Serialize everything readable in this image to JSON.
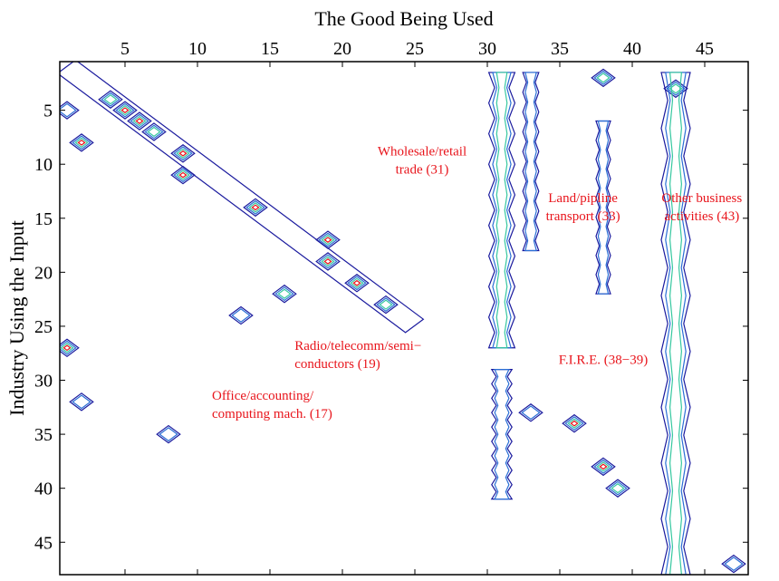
{
  "chart_data": {
    "type": "contour",
    "xlabel": "The Good Being Used",
    "ylabel": "Industry Using the Input",
    "xlim": [
      0.5,
      48
    ],
    "ylim": [
      0.5,
      48
    ],
    "y_reversed": true,
    "x_axis_position": "top",
    "xticks": [
      5,
      10,
      15,
      20,
      25,
      30,
      35,
      40,
      45
    ],
    "yticks": [
      5,
      10,
      15,
      20,
      25,
      30,
      35,
      40,
      45
    ],
    "level_colors": [
      "#1a1a9e",
      "#2b6fd6",
      "#37c8a0",
      "#e8141b"
    ],
    "annotations": [
      {
        "lines": [
          "Wholesale/retail",
          "trade (31)"
        ],
        "x": 25.5,
        "y": 9.2,
        "align": "middle"
      },
      {
        "lines": [
          "Land/pipline",
          "transport (33)"
        ],
        "x": 36.6,
        "y": 13.5,
        "align": "middle"
      },
      {
        "lines": [
          "Other business",
          "activities (43)"
        ],
        "x": 44.8,
        "y": 13.5,
        "align": "middle"
      },
      {
        "lines": [
          "Radio/telecomm/semi−",
          "conductors (19)"
        ],
        "x": 16.7,
        "y": 27.2,
        "align": "start"
      },
      {
        "lines": [
          "F.I.R.E. (38−39)"
        ],
        "x": 38.0,
        "y": 28.5,
        "align": "middle"
      },
      {
        "lines": [
          "Office/accounting/",
          "computing mach. (17)"
        ],
        "x": 11.0,
        "y": 31.8,
        "align": "start"
      }
    ],
    "diagonal_peaks": [
      {
        "x": 2,
        "y": 8,
        "level": 3
      },
      {
        "x": 4,
        "y": 4,
        "level": 2
      },
      {
        "x": 5,
        "y": 5,
        "level": 3
      },
      {
        "x": 6,
        "y": 6,
        "level": 3
      },
      {
        "x": 7,
        "y": 7,
        "level": 2
      },
      {
        "x": 9,
        "y": 9,
        "level": 3
      },
      {
        "x": 9,
        "y": 11,
        "level": 3
      },
      {
        "x": 14,
        "y": 14,
        "level": 3
      },
      {
        "x": 19,
        "y": 17,
        "level": 3
      },
      {
        "x": 19,
        "y": 19,
        "level": 3
      },
      {
        "x": 21,
        "y": 21,
        "level": 3
      },
      {
        "x": 23,
        "y": 23,
        "level": 2
      },
      {
        "x": 1,
        "y": 27,
        "level": 3
      },
      {
        "x": 36,
        "y": 34,
        "level": 3
      },
      {
        "x": 38,
        "y": 38,
        "level": 3
      },
      {
        "x": 38,
        "y": 2,
        "level": 2
      },
      {
        "x": 43,
        "y": 3,
        "level": 2
      },
      {
        "x": 2,
        "y": 32,
        "level": 1
      },
      {
        "x": 13,
        "y": 24,
        "level": 1
      },
      {
        "x": 16,
        "y": 22,
        "level": 2
      },
      {
        "x": 8,
        "y": 35,
        "level": 1
      },
      {
        "x": 39,
        "y": 40,
        "level": 2
      },
      {
        "x": 47,
        "y": 47,
        "level": 1
      },
      {
        "x": 33,
        "y": 33,
        "level": 1
      },
      {
        "x": 1,
        "y": 5,
        "level": 1
      }
    ],
    "vertical_bands": [
      {
        "x": 31,
        "y_start": 1.5,
        "y_end": 27,
        "level": 2,
        "width": 0.9
      },
      {
        "x": 31,
        "y_start": 29,
        "y_end": 41,
        "level": 1,
        "width": 0.7
      },
      {
        "x": 33,
        "y_start": 1.5,
        "y_end": 18,
        "level": 1,
        "width": 0.55
      },
      {
        "x": 43,
        "y_start": 1.5,
        "y_end": 48,
        "level": 2,
        "width": 1.0
      },
      {
        "x": 38,
        "y_start": 6,
        "y_end": 22,
        "level": 1,
        "width": 0.5
      }
    ]
  }
}
